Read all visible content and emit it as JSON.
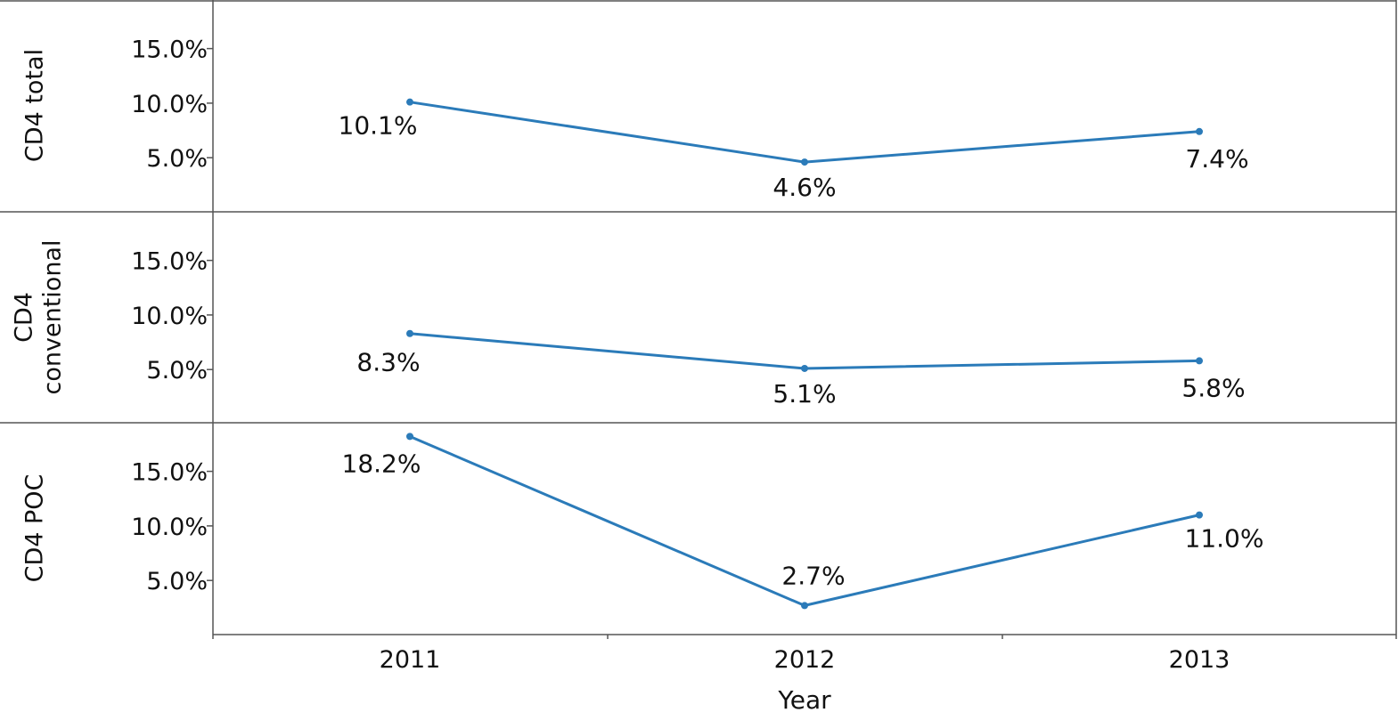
{
  "chart_data": {
    "type": "line",
    "categories": [
      "2011",
      "2012",
      "2013"
    ],
    "xlabel": "Year",
    "ylim": [
      0,
      19
    ],
    "yticks": [
      5,
      10,
      15
    ],
    "ytick_labels": [
      "5.0%",
      "10.0%",
      "15.0%"
    ],
    "grid": false,
    "line_color": "#2b7bb9",
    "panels": [
      {
        "row_label": [
          "CD4 total"
        ],
        "values": [
          10.1,
          4.6,
          7.4
        ],
        "labels": [
          "10.1%",
          "4.6%",
          "7.4%"
        ]
      },
      {
        "row_label": [
          "CD4",
          "conventional"
        ],
        "values": [
          8.3,
          5.1,
          5.8
        ],
        "labels": [
          "8.3%",
          "5.1%",
          "5.8%"
        ]
      },
      {
        "row_label": [
          "CD4 POC"
        ],
        "values": [
          18.2,
          2.7,
          11.0
        ],
        "labels": [
          "18.2%",
          "2.7%",
          "11.0%"
        ]
      }
    ]
  }
}
